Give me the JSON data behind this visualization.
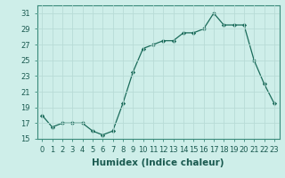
{
  "x": [
    0,
    1,
    2,
    3,
    4,
    5,
    6,
    7,
    8,
    9,
    10,
    11,
    12,
    13,
    14,
    15,
    16,
    17,
    18,
    19,
    20,
    21,
    22,
    23
  ],
  "y": [
    18.0,
    16.5,
    17.0,
    17.0,
    17.0,
    16.0,
    15.5,
    16.0,
    19.5,
    23.5,
    26.5,
    27.0,
    27.5,
    27.5,
    28.5,
    28.5,
    29.0,
    31.0,
    29.5,
    29.5,
    29.5,
    25.0,
    22.0,
    19.5
  ],
  "line_color": "#1a6b5a",
  "marker": "D",
  "marker_size": 2.2,
  "bg_color": "#ceeee9",
  "grid_color": "#b8dbd6",
  "xlabel": "Humidex (Indice chaleur)",
  "xlim": [
    -0.5,
    23.5
  ],
  "ylim": [
    15,
    32
  ],
  "yticks": [
    15,
    17,
    19,
    21,
    23,
    25,
    27,
    29,
    31
  ],
  "xtick_labels": [
    "0",
    "1",
    "2",
    "3",
    "4",
    "5",
    "6",
    "7",
    "8",
    "9",
    "10",
    "11",
    "12",
    "13",
    "14",
    "15",
    "16",
    "17",
    "18",
    "19",
    "20",
    "21",
    "22",
    "23"
  ],
  "xlabel_fontsize": 7.5,
  "tick_fontsize": 6.0
}
